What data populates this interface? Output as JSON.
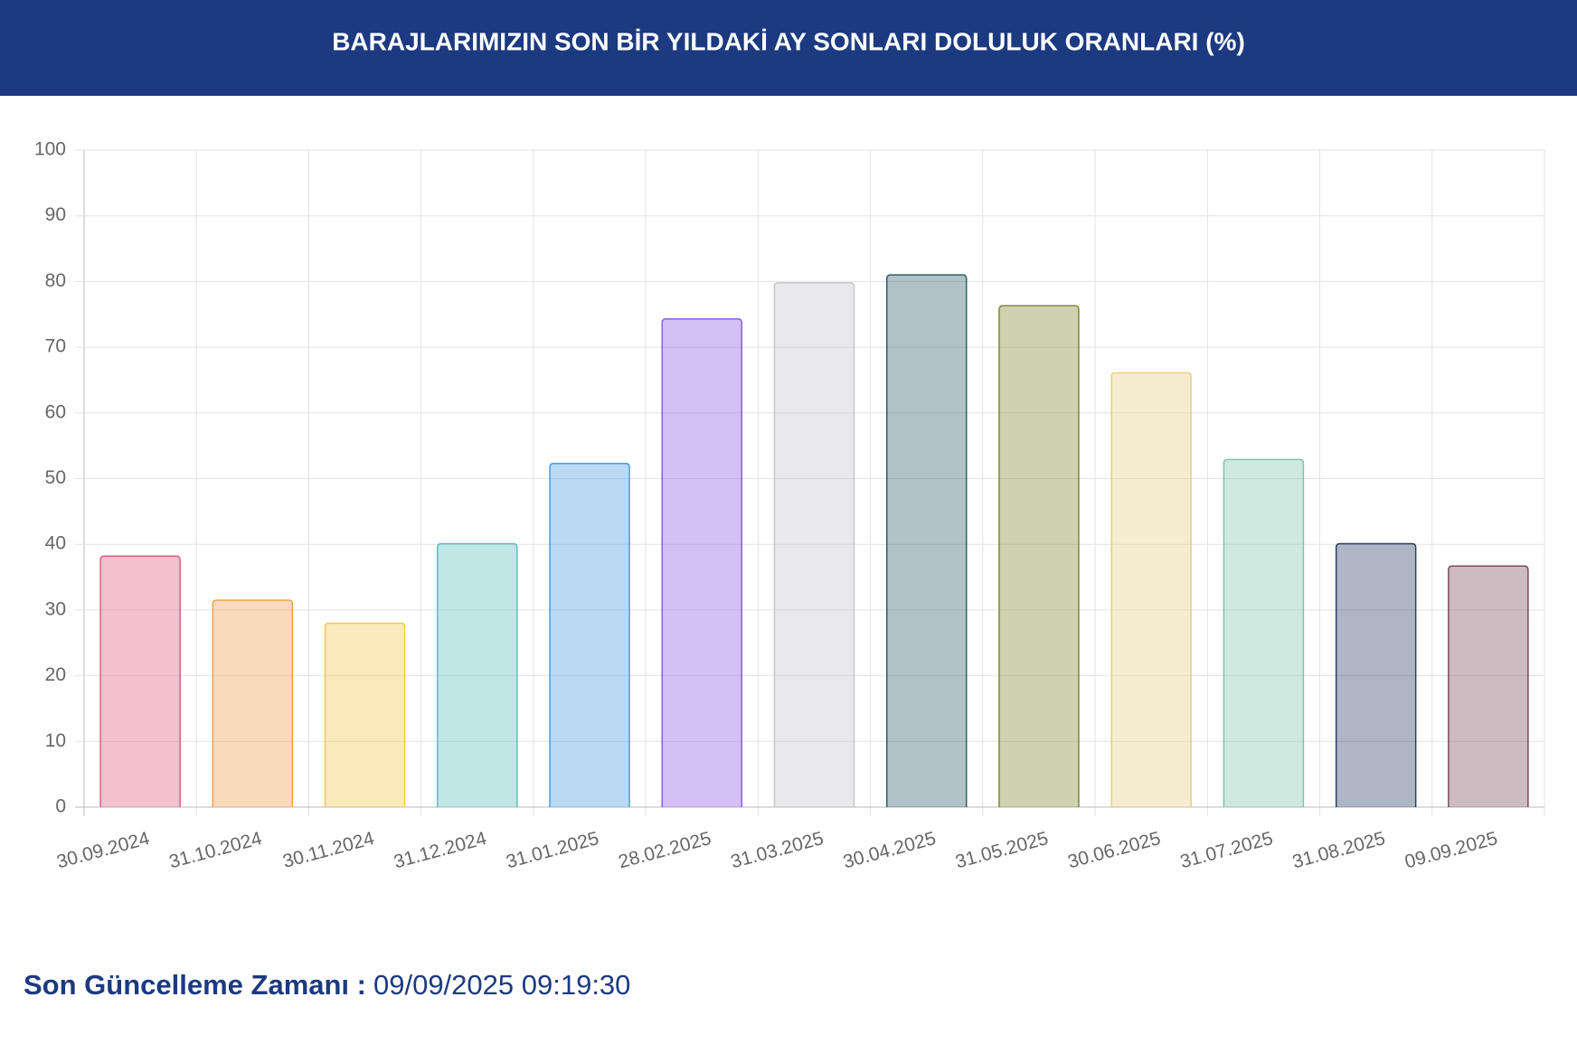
{
  "chart_data": {
    "type": "bar",
    "title": "BARAJLARIMIZIN SON BİR YILDAKİ AY SONLARI DOLULUK ORANLARI (%)",
    "categories": [
      "30.09.2024",
      "31.10.2024",
      "30.11.2024",
      "31.12.2024",
      "31.01.2025",
      "28.02.2025",
      "31.03.2025",
      "30.04.2025",
      "31.05.2025",
      "30.06.2025",
      "31.07.2025",
      "31.08.2025",
      "09.09.2025"
    ],
    "values": [
      38.2,
      31.5,
      28.0,
      40.1,
      52.3,
      74.3,
      79.8,
      81.0,
      76.3,
      66.1,
      52.9,
      40.1,
      36.7
    ],
    "colors": [
      "#e05c84",
      "#f0a04b",
      "#f2c94c",
      "#5bbdbd",
      "#4a9ae0",
      "#8c5ce6",
      "#c4c6ca",
      "#2f5f66",
      "#7f8a35",
      "#e8cf85",
      "#7fc4aa",
      "#2b3f66",
      "#7a4b5c"
    ],
    "ylim": [
      0,
      100
    ],
    "yticks": [
      0,
      10,
      20,
      30,
      40,
      50,
      60,
      70,
      80,
      90,
      100
    ],
    "grid": true
  },
  "footer": {
    "label": "Son Güncelleme Zamanı :",
    "value": "09/09/2025 09:19:30"
  }
}
